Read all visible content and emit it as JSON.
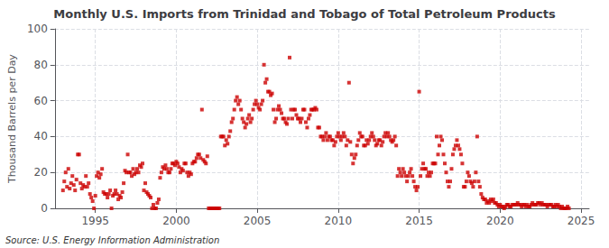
{
  "chart_data": {
    "type": "scatter",
    "title": "Monthly U.S. Imports from Trinidad and Tobago of Total Petroleum Products",
    "ylabel": "Thousand Barrels per Day",
    "annotations": [
      "Source: U.S. Energy Information Administration"
    ],
    "xlim": [
      1992.5,
      2025.5
    ],
    "ylim": [
      0,
      100
    ],
    "xticks": [
      1995,
      2000,
      2005,
      2010,
      2015,
      2020,
      2025
    ],
    "yticks": [
      0,
      20,
      40,
      60,
      80,
      100
    ],
    "grid": true,
    "color": "#cc0000",
    "marker": "square",
    "x": [
      1993.0,
      1993.083,
      1993.167,
      1993.25,
      1993.333,
      1993.417,
      1993.5,
      1993.583,
      1993.667,
      1993.75,
      1993.833,
      1993.917,
      1994.0,
      1994.083,
      1994.167,
      1994.25,
      1994.333,
      1994.417,
      1994.5,
      1994.583,
      1994.667,
      1994.75,
      1994.833,
      1994.917,
      1995.0,
      1995.083,
      1995.167,
      1995.25,
      1995.333,
      1995.417,
      1995.5,
      1995.583,
      1995.667,
      1995.75,
      1995.833,
      1995.917,
      1996.0,
      1996.083,
      1996.167,
      1996.25,
      1996.333,
      1996.417,
      1996.5,
      1996.583,
      1996.667,
      1996.75,
      1996.833,
      1996.917,
      1997.0,
      1997.083,
      1997.167,
      1997.25,
      1997.333,
      1997.417,
      1997.5,
      1997.583,
      1997.667,
      1997.75,
      1997.833,
      1997.917,
      1998.0,
      1998.083,
      1998.167,
      1998.25,
      1998.333,
      1998.417,
      1998.5,
      1998.583,
      1998.667,
      1998.75,
      1998.833,
      1998.917,
      1999.0,
      1999.083,
      1999.167,
      1999.25,
      1999.333,
      1999.417,
      1999.5,
      1999.583,
      1999.667,
      1999.75,
      1999.833,
      1999.917,
      2000.0,
      2000.083,
      2000.167,
      2000.25,
      2000.333,
      2000.417,
      2000.5,
      2000.583,
      2000.667,
      2000.75,
      2000.833,
      2000.917,
      2001.0,
      2001.083,
      2001.167,
      2001.25,
      2001.333,
      2001.417,
      2001.5,
      2001.583,
      2001.667,
      2001.75,
      2001.833,
      2001.917,
      2002.0,
      2002.083,
      2002.167,
      2002.25,
      2002.333,
      2002.417,
      2002.5,
      2002.583,
      2002.667,
      2002.75,
      2002.833,
      2002.917,
      2003.0,
      2003.083,
      2003.167,
      2003.25,
      2003.333,
      2003.417,
      2003.5,
      2003.583,
      2003.667,
      2003.75,
      2003.833,
      2003.917,
      2004.0,
      2004.083,
      2004.167,
      2004.25,
      2004.333,
      2004.417,
      2004.5,
      2004.583,
      2004.667,
      2004.75,
      2004.833,
      2004.917,
      2005.0,
      2005.083,
      2005.167,
      2005.25,
      2005.333,
      2005.417,
      2005.5,
      2005.583,
      2005.667,
      2005.75,
      2005.833,
      2005.917,
      2006.0,
      2006.083,
      2006.167,
      2006.25,
      2006.333,
      2006.417,
      2006.5,
      2006.583,
      2006.667,
      2006.75,
      2006.833,
      2006.917,
      2007.0,
      2007.083,
      2007.167,
      2007.25,
      2007.333,
      2007.417,
      2007.5,
      2007.583,
      2007.667,
      2007.75,
      2007.833,
      2007.917,
      2008.0,
      2008.083,
      2008.167,
      2008.25,
      2008.333,
      2008.417,
      2008.5,
      2008.583,
      2008.667,
      2008.75,
      2008.833,
      2008.917,
      2009.0,
      2009.083,
      2009.167,
      2009.25,
      2009.333,
      2009.417,
      2009.5,
      2009.583,
      2009.667,
      2009.75,
      2009.833,
      2009.917,
      2010.0,
      2010.083,
      2010.167,
      2010.25,
      2010.333,
      2010.417,
      2010.5,
      2010.583,
      2010.667,
      2010.75,
      2010.833,
      2010.917,
      2011.0,
      2011.083,
      2011.167,
      2011.25,
      2011.333,
      2011.417,
      2011.5,
      2011.583,
      2011.667,
      2011.75,
      2011.833,
      2011.917,
      2012.0,
      2012.083,
      2012.167,
      2012.25,
      2012.333,
      2012.417,
      2012.5,
      2012.583,
      2012.667,
      2012.75,
      2012.833,
      2012.917,
      2013.0,
      2013.083,
      2013.167,
      2013.25,
      2013.333,
      2013.417,
      2013.5,
      2013.583,
      2013.667,
      2013.75,
      2013.833,
      2013.917,
      2014.0,
      2014.083,
      2014.167,
      2014.25,
      2014.333,
      2014.417,
      2014.5,
      2014.583,
      2014.667,
      2014.75,
      2014.833,
      2014.917,
      2015.0,
      2015.083,
      2015.167,
      2015.25,
      2015.333,
      2015.417,
      2015.5,
      2015.583,
      2015.667,
      2015.75,
      2015.833,
      2015.917,
      2016.0,
      2016.083,
      2016.167,
      2016.25,
      2016.333,
      2016.417,
      2016.5,
      2016.583,
      2016.667,
      2016.75,
      2016.833,
      2016.917,
      2017.0,
      2017.083,
      2017.167,
      2017.25,
      2017.333,
      2017.417,
      2017.5,
      2017.583,
      2017.667,
      2017.75,
      2017.833,
      2017.917,
      2018.0,
      2018.083,
      2018.167,
      2018.25,
      2018.333,
      2018.417,
      2018.5,
      2018.583,
      2018.667,
      2018.75,
      2018.833,
      2018.917,
      2019.0,
      2019.083,
      2019.167,
      2019.25,
      2019.333,
      2019.417,
      2019.5,
      2019.583,
      2019.667,
      2019.75,
      2019.833,
      2019.917,
      2020.0,
      2020.083,
      2020.167,
      2020.25,
      2020.333,
      2020.417,
      2020.5,
      2020.583,
      2020.667,
      2020.75,
      2020.833,
      2020.917,
      2021.0,
      2021.083,
      2021.167,
      2021.25,
      2021.333,
      2021.417,
      2021.5,
      2021.583,
      2021.667,
      2021.75,
      2021.833,
      2021.917,
      2022.0,
      2022.083,
      2022.167,
      2022.25,
      2022.333,
      2022.417,
      2022.5,
      2022.583,
      2022.667,
      2022.75,
      2022.833,
      2022.917,
      2023.0,
      2023.083,
      2023.167,
      2023.25,
      2023.333,
      2023.417,
      2023.5,
      2023.583,
      2023.667,
      2023.75,
      2023.833,
      2023.917,
      2024.0,
      2024.083,
      2024.167,
      2024.25
    ],
    "values": [
      10,
      15,
      20,
      12,
      22,
      11,
      14,
      18,
      13,
      10,
      16,
      30,
      30,
      14,
      11,
      13,
      12,
      18,
      12,
      14,
      8,
      6,
      4,
      0,
      7,
      18,
      20,
      17,
      19,
      22,
      9,
      8,
      8,
      6,
      8,
      10,
      0,
      7,
      8,
      10,
      8,
      5,
      7,
      6,
      9,
      14,
      21,
      20,
      30,
      20,
      20,
      18,
      22,
      19,
      20,
      22,
      20,
      24,
      23,
      25,
      10,
      14,
      9,
      8,
      7,
      6,
      0,
      2,
      0,
      0,
      3,
      5,
      17,
      20,
      23,
      22,
      24,
      22,
      20,
      20,
      22,
      25,
      25,
      24,
      26,
      25,
      23,
      20,
      22,
      21,
      25,
      25,
      20,
      18,
      20,
      19,
      25,
      26,
      26,
      28,
      30,
      30,
      28,
      55,
      27,
      26,
      25,
      29,
      0,
      0,
      0,
      0,
      0,
      0,
      0,
      0,
      0,
      40,
      40,
      40,
      35,
      38,
      36,
      40,
      43,
      48,
      50,
      55,
      60,
      62,
      58,
      60,
      55,
      50,
      48,
      45,
      47,
      50,
      52,
      48,
      50,
      55,
      58,
      60,
      58,
      56,
      55,
      58,
      60,
      80,
      70,
      72,
      65,
      65,
      63,
      64,
      55,
      48,
      50,
      55,
      57,
      55,
      53,
      50,
      50,
      48,
      47,
      50,
      84,
      55,
      50,
      55,
      55,
      52,
      50,
      50,
      48,
      50,
      55,
      55,
      48,
      45,
      50,
      52,
      55,
      55,
      55,
      56,
      55,
      45,
      45,
      40,
      40,
      38,
      40,
      42,
      38,
      40,
      40,
      38,
      38,
      35,
      37,
      40,
      42,
      40,
      38,
      40,
      42,
      40,
      35,
      38,
      70,
      37,
      30,
      25,
      28,
      30,
      35,
      38,
      42,
      40,
      40,
      35,
      35,
      38,
      36,
      38,
      40,
      42,
      40,
      38,
      35,
      36,
      38,
      38,
      35,
      37,
      40,
      42,
      40,
      42,
      40,
      38,
      37,
      38,
      40,
      35,
      18,
      22,
      20,
      18,
      22,
      20,
      18,
      15,
      18,
      20,
      22,
      18,
      15,
      12,
      10,
      12,
      65,
      18,
      22,
      25,
      22,
      22,
      18,
      20,
      18,
      20,
      25,
      25,
      25,
      40,
      30,
      35,
      40,
      38,
      30,
      25,
      20,
      15,
      12,
      15,
      22,
      30,
      33,
      35,
      38,
      35,
      33,
      30,
      25,
      12,
      12,
      15,
      20,
      18,
      15,
      14,
      12,
      15,
      20,
      40,
      15,
      12,
      8,
      6,
      5,
      5,
      3,
      4,
      3,
      5,
      4,
      5,
      3,
      3,
      2,
      1,
      2,
      1,
      1,
      0,
      1,
      2,
      2,
      1,
      1,
      2,
      2,
      2,
      2,
      3,
      2,
      2,
      1,
      2,
      2,
      1,
      2,
      1,
      1,
      2,
      3,
      2,
      2,
      2,
      3,
      3,
      2,
      3,
      2,
      2,
      2,
      1,
      2,
      2,
      2,
      1,
      1,
      2,
      1,
      2,
      1,
      0,
      1,
      0,
      0,
      0,
      1,
      0
    ]
  }
}
